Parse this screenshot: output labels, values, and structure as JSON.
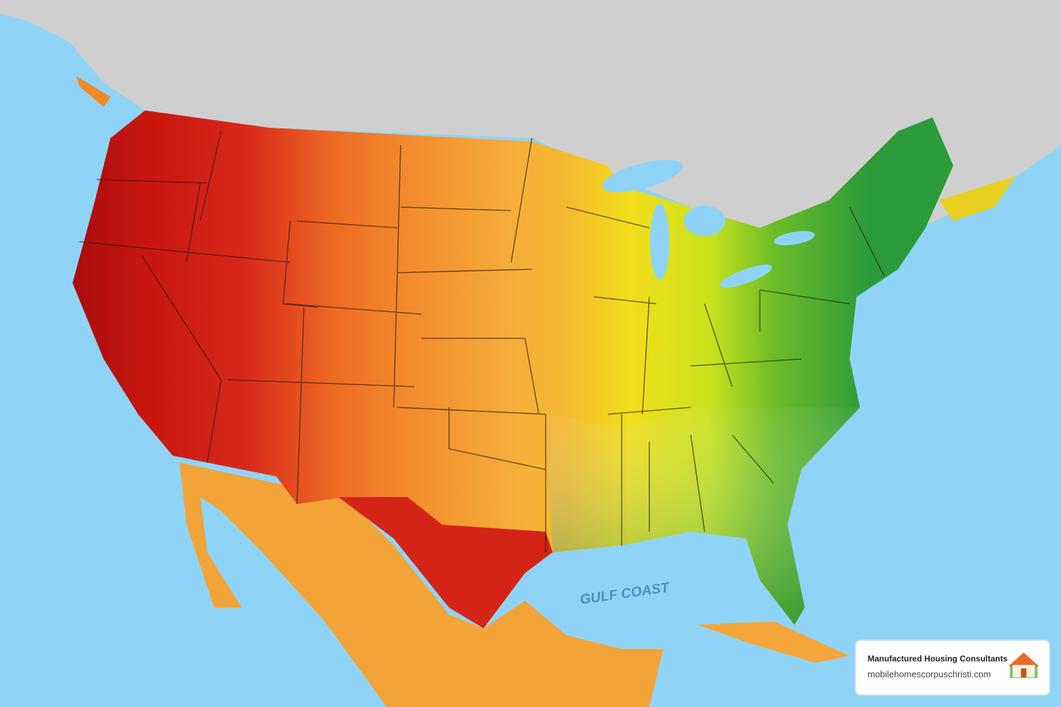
{
  "map": {
    "label": "GULF COAST"
  },
  "badge": {
    "title": "Manufactured Housing Consultants",
    "url": "mobilehomescorpuschristi.com"
  }
}
